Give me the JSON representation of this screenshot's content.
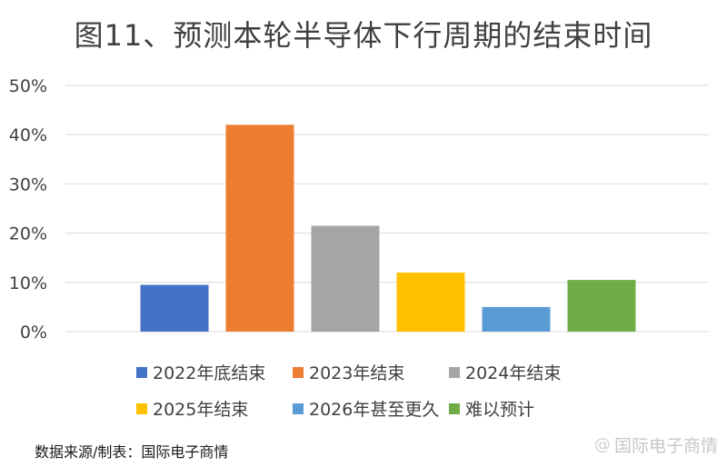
{
  "title": "图11、预测本轮半导体下行周期的结束时间",
  "source": "数据来源/制表：国际电子商情",
  "watermark": {
    "text": "国际电子商情",
    "icon": "at-sign-icon"
  },
  "chart_data": {
    "type": "bar",
    "categories": [
      "2022年底结束",
      "2023年结束",
      "2024年结束",
      "2025年结束",
      "2026年甚至更久",
      "难以预计"
    ],
    "values": [
      9.5,
      42,
      21.5,
      12,
      5,
      10.5
    ],
    "colors": [
      "#4472C4",
      "#ED7D31",
      "#A5A5A5",
      "#FFC000",
      "#5B9BD5",
      "#70AD47"
    ],
    "ylim": [
      0,
      50
    ],
    "yticks": [
      "0%",
      "10%",
      "20%",
      "30%",
      "40%",
      "50%"
    ],
    "grid": true,
    "legend_position": "bottom"
  }
}
